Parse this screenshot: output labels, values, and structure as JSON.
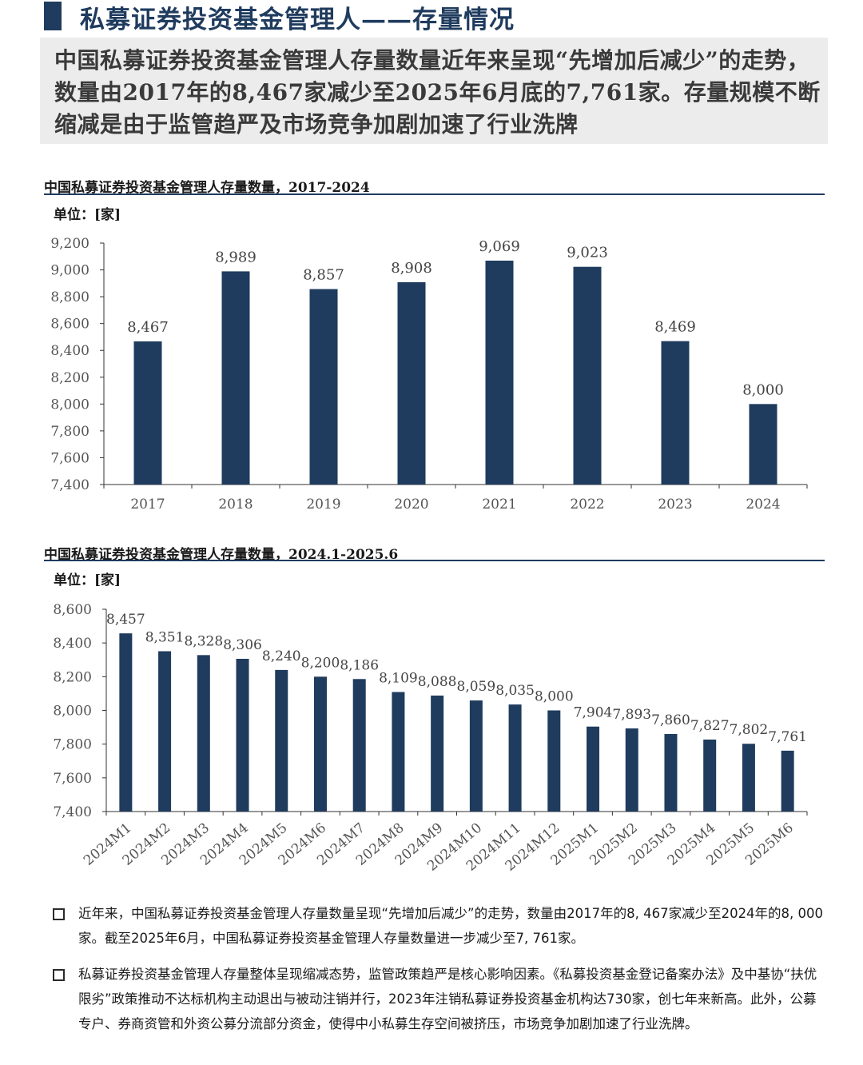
{
  "page": {
    "title": "私募证券投资基金管理人——存量情况",
    "summary": "中国私募证券投资基金管理人存量数量近年来呈现“先增加后减少”的走势，数量由2017年的8,467家减少至2025年6月底的7,761家。存量规模不断缩减是由于监管趋严及市场竞争加剧加速了行业洗牌",
    "bar_color": "#1f3b5e"
  },
  "chart_data": [
    {
      "type": "bar",
      "title": "中国私募证券投资基金管理人存量数量，2017-2024",
      "unit_label": "单位：[家]",
      "categories": [
        "2017",
        "2018",
        "2019",
        "2020",
        "2021",
        "2022",
        "2023",
        "2024"
      ],
      "values": [
        8467,
        8989,
        8857,
        8908,
        9069,
        9023,
        8469,
        8000
      ],
      "data_labels": [
        "8,467",
        "8,989",
        "8,857",
        "8,908",
        "9,069",
        "9,023",
        "8,469",
        "8,000"
      ],
      "yticks": [
        "7,400",
        "7,600",
        "7,800",
        "8,000",
        "8,200",
        "8,400",
        "8,600",
        "8,800",
        "9,000",
        "9,200"
      ],
      "ylim": [
        7400,
        9200
      ],
      "grid": false
    },
    {
      "type": "bar",
      "title": "中国私募证券投资基金管理人存量数量，2024.1-2025.6",
      "unit_label": "单位：[家]",
      "categories": [
        "2024M1",
        "2024M2",
        "2024M3",
        "2024M4",
        "2024M5",
        "2024M6",
        "2024M7",
        "2024M8",
        "2024M9",
        "2024M10",
        "2024M11",
        "2024M12",
        "2025M1",
        "2025M2",
        "2025M3",
        "2025M4",
        "2025M5",
        "2025M6"
      ],
      "values": [
        8457,
        8351,
        8328,
        8306,
        8240,
        8200,
        8186,
        8109,
        8088,
        8059,
        8035,
        8000,
        7904,
        7893,
        7860,
        7827,
        7802,
        7761
      ],
      "data_labels": [
        "8,457",
        "8,351",
        "8,328",
        "8,306",
        "8,240",
        "8,200",
        "8,186",
        "8,109",
        "8,088",
        "8,059",
        "8,035",
        "8,000",
        "7,904",
        "7,893",
        "7,860",
        "7,827",
        "7,802",
        "7,761"
      ],
      "yticks": [
        "7,400",
        "7,600",
        "7,800",
        "8,000",
        "8,200",
        "8,400",
        "8,600"
      ],
      "ylim": [
        7400,
        8600
      ],
      "grid": false
    }
  ],
  "notes": [
    "近年来，中国私募证券投资基金管理人存量数量呈现“先增加后减少”的走势，数量由2017年的8, 467家减少至2024年的8, 000家。截至2025年6月，中国私募证券投资基金管理人存量数量进一步减少至7, 761家。",
    "私募证券投资基金管理人存量整体呈现缩减态势，监管政策趋严是核心影响因素。《私募投资基金登记备案办法》及中基协“扶优限劣”政策推动不达标机构主动退出与被动注销并行，2023年注销私募证券投资基金机构达730家，创七年来新高。此外，公募专户、券商资管和外资公募分流部分资金，使得中小私募生存空间被挤压，市场竞争加剧加速了行业洗牌。"
  ]
}
